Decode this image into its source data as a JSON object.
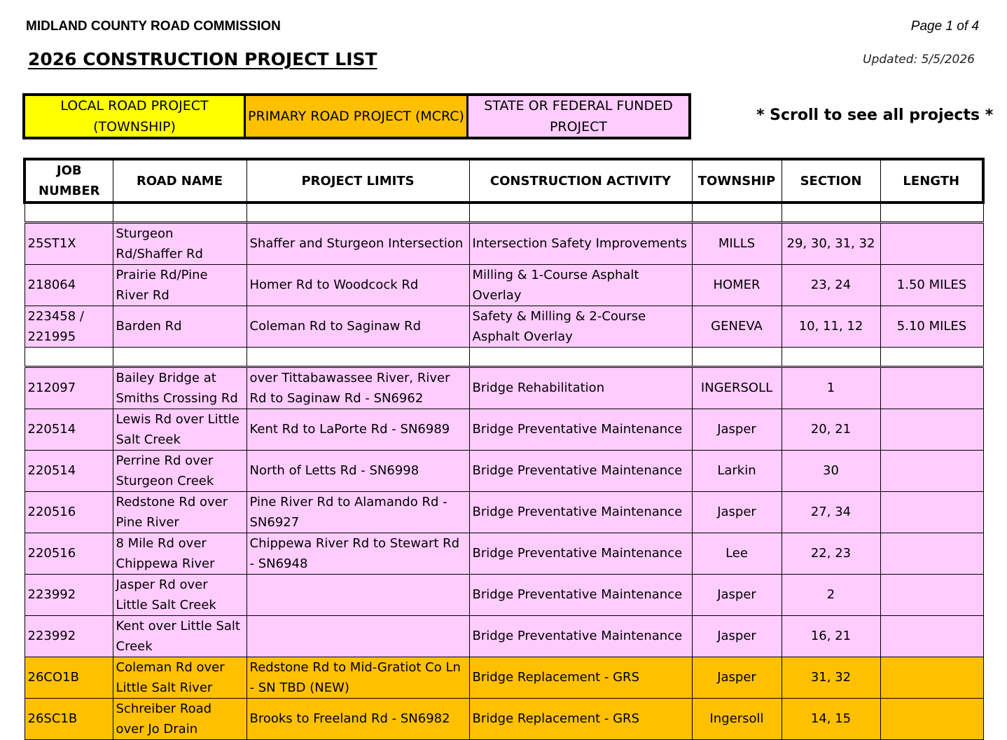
{
  "header": {
    "organization": "MIDLAND COUNTY ROAD COMMISSION",
    "page": "Page 1 of 4",
    "title": "2026 CONSTRUCTION PROJECT LIST",
    "updated": "Updated: 5/5/2026"
  },
  "legend": {
    "local": "LOCAL ROAD PROJECT (TOWNSHIP)",
    "primary": "PRIMARY ROAD PROJECT (MCRC)",
    "state": "STATE OR FEDERAL FUNDED PROJECT",
    "colors": {
      "local": "#ffff00",
      "primary": "#ffc000",
      "state": "#ffccff"
    }
  },
  "scroll_note": "* Scroll to see all projects *",
  "columns": [
    "JOB NUMBER",
    "ROAD NAME",
    "PROJECT LIMITS",
    "CONSTRUCTION ACTIVITY",
    "TOWNSHIP",
    "SECTION",
    "LENGTH"
  ],
  "rows": [
    {
      "type": "state",
      "job": "25ST1X",
      "road": "Sturgeon Rd/Shaffer Rd",
      "limits": "Shaffer and Sturgeon Intersection",
      "activity": "Intersection Safety Improvements",
      "township": "MILLS",
      "section": "29, 30, 31, 32",
      "length": ""
    },
    {
      "type": "state",
      "job": "218064",
      "road": "Prairie Rd/Pine River Rd",
      "limits": "Homer Rd to Woodcock Rd",
      "activity": "Milling & 1-Course Asphalt Overlay",
      "township": "HOMER",
      "section": "23, 24",
      "length": "1.50 MILES"
    },
    {
      "type": "state",
      "job": "223458 / 221995",
      "road": "Barden Rd",
      "limits": "Coleman Rd to Saginaw Rd",
      "activity": "Safety & Milling & 2-Course Asphalt Overlay",
      "township": "GENEVA",
      "section": "10, 11, 12",
      "length": "5.10 MILES"
    },
    {
      "type": "state",
      "job": "212097",
      "road": "Bailey Bridge at Smiths Crossing Rd",
      "limits": "over Tittabawassee River, River Rd to Saginaw Rd - SN6962",
      "activity": "Bridge Rehabilitation",
      "township": "INGERSOLL",
      "section": "1",
      "length": ""
    },
    {
      "type": "state",
      "job": "220514",
      "road": "Lewis Rd over Little Salt Creek",
      "limits": "Kent Rd to LaPorte Rd - SN6989",
      "activity": "Bridge Preventative Maintenance",
      "township": "Jasper",
      "section": "20, 21",
      "length": ""
    },
    {
      "type": "state",
      "job": "220514",
      "road": "Perrine Rd over Sturgeon Creek",
      "limits": "North of Letts Rd - SN6998",
      "activity": "Bridge Preventative Maintenance",
      "township": "Larkin",
      "section": "30",
      "length": ""
    },
    {
      "type": "state",
      "job": "220516",
      "road": "Redstone Rd over Pine River",
      "limits": "Pine River Rd to Alamando Rd - SN6927",
      "activity": "Bridge Preventative Maintenance",
      "township": "Jasper",
      "section": "27, 34",
      "length": ""
    },
    {
      "type": "state",
      "job": "220516",
      "road": "8 Mile Rd over Chippewa River",
      "limits": "Chippewa River Rd to Stewart Rd - SN6948",
      "activity": "Bridge Preventative Maintenance",
      "township": "Lee",
      "section": "22, 23",
      "length": ""
    },
    {
      "type": "state",
      "job": "223992",
      "road": "Jasper Rd over Little Salt Creek",
      "limits": "",
      "activity": "Bridge Preventative Maintenance",
      "township": "Jasper",
      "section": "2",
      "length": ""
    },
    {
      "type": "state",
      "job": "223992",
      "road": "Kent over Little Salt Creek",
      "limits": "",
      "activity": "Bridge Preventative Maintenance",
      "township": "Jasper",
      "section": "16, 21",
      "length": ""
    },
    {
      "type": "primary",
      "job": "26CO1B",
      "road": "Coleman Rd over Little Salt River",
      "limits": "Redstone Rd to Mid-Gratiot Co Ln - SN TBD (NEW)",
      "activity": "Bridge Replacement - GRS",
      "township": "Jasper",
      "section": "31, 32",
      "length": ""
    },
    {
      "type": "primary",
      "job": "26SC1B",
      "road": "Schreiber Road over Jo Drain",
      "limits": "Brooks to Freeland Rd - SN6982",
      "activity": "Bridge Replacement - GRS",
      "township": "Ingersoll",
      "section": "14, 15",
      "length": ""
    }
  ]
}
